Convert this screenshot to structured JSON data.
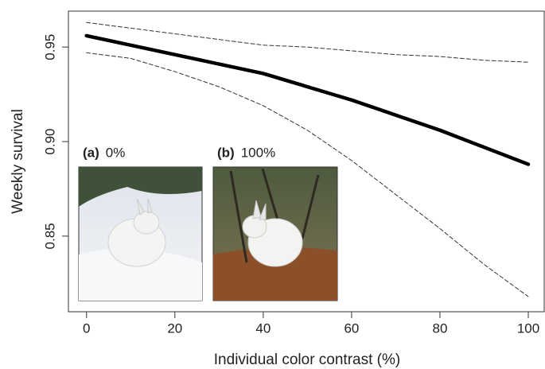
{
  "chart_data": {
    "type": "line",
    "x_label": "Individual color contrast (%)",
    "y_label": "Weekly survival",
    "x": [
      0,
      10,
      20,
      30,
      40,
      50,
      60,
      70,
      80,
      90,
      100
    ],
    "series": [
      {
        "color": "#000000",
        "line_style": "solid",
        "line_width": 4.5,
        "values": [
          0.956,
          0.951,
          0.946,
          0.941,
          0.936,
          0.929,
          0.922,
          0.914,
          0.906,
          0.897,
          0.888
        ]
      },
      {
        "color": "#333333",
        "line_style": "dashed",
        "line_width": 1,
        "values": [
          0.963,
          0.96,
          0.957,
          0.954,
          0.951,
          0.95,
          0.948,
          0.946,
          0.945,
          0.943,
          0.942
        ]
      },
      {
        "color": "#333333",
        "line_style": "dashed",
        "line_width": 1,
        "values": [
          0.947,
          0.944,
          0.937,
          0.929,
          0.919,
          0.906,
          0.89,
          0.872,
          0.854,
          0.835,
          0.818
        ]
      }
    ],
    "xlim": [
      -4.1,
      103.6
    ],
    "xticks": [
      0,
      20,
      40,
      60,
      80,
      100
    ],
    "ylim": [
      0.81,
      0.969
    ],
    "yticks": [
      0.85,
      {
        "value": 0.9,
        "label": "0.90"
      },
      0.95
    ],
    "insets": [
      {
        "tag": "(a)",
        "label": "0%"
      },
      {
        "tag": "(b)",
        "label": "100%"
      }
    ]
  }
}
